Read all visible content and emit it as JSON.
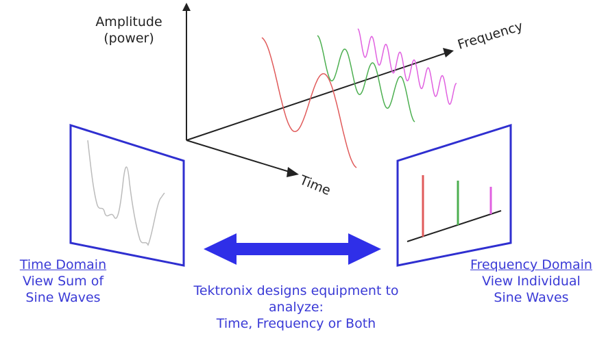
{
  "axes": {
    "amplitude_label_line1": "Amplitude",
    "amplitude_label_line2": "(power)",
    "frequency_label": "Frequency",
    "time_label": "Time"
  },
  "time_domain": {
    "title": "Time Domain",
    "line1": "View Sum of",
    "line2": "Sine Waves"
  },
  "frequency_domain": {
    "title": "Frequency Domain",
    "line1": "View Individual",
    "line2": "Sine Waves"
  },
  "caption": {
    "line1": "Tektronix designs equipment to",
    "line2": "analyze:",
    "line3": "Time, Frequency or Both"
  },
  "colors": {
    "panel_border": "#2f2fd0",
    "arrow": "#2f2fe8",
    "wave_red": "#e05a5a",
    "wave_green": "#4caf50",
    "wave_magenta": "#e060e0",
    "axis": "#222222",
    "sum_wave": "#bbbbbb"
  }
}
